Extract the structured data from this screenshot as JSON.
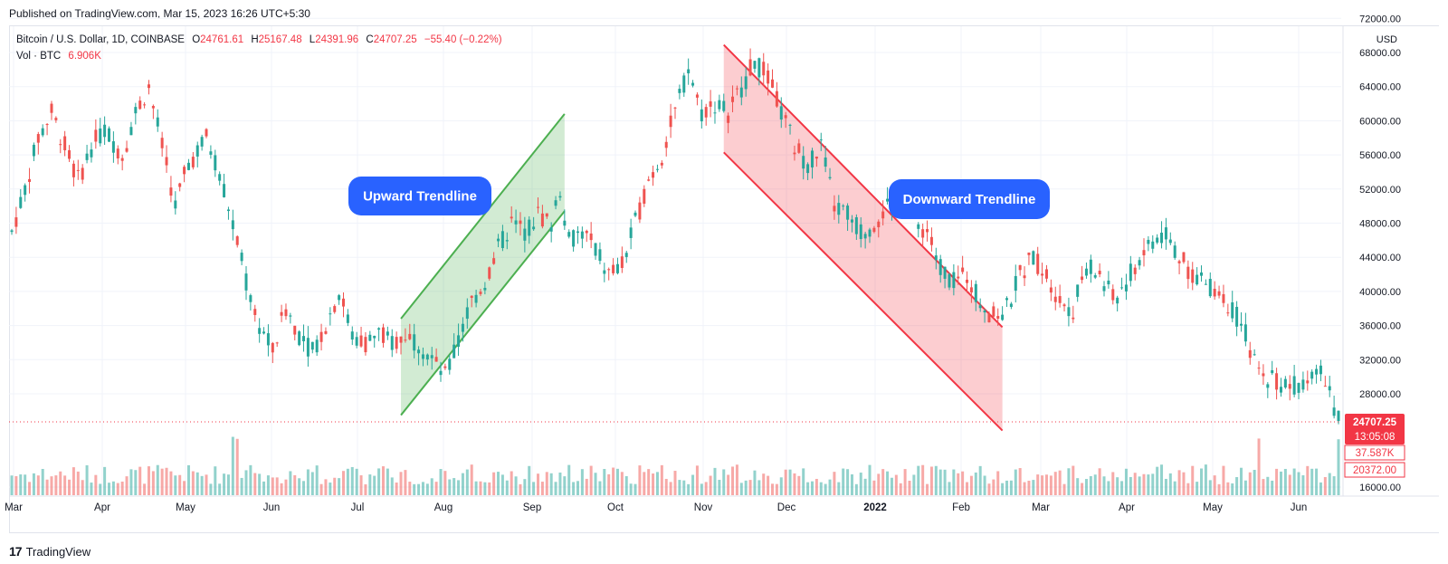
{
  "header": {
    "published": "Published on TradingView.com, Mar 15, 2023 16:26 UTC+5:30"
  },
  "legend": {
    "symbol": "Bitcoin / U.S. Dollar, 1D, COINBASE",
    "o_label": "O",
    "o_value": "24761.61",
    "h_label": "H",
    "h_value": "25167.48",
    "l_label": "L",
    "l_value": "24391.96",
    "c_label": "C",
    "c_value": "24707.25",
    "change": "−55.40 (−0.22%)",
    "vol_label": "Vol · BTC",
    "vol_value": "6.906K"
  },
  "footer": {
    "brand": "TradingView",
    "logo_glyph": "17"
  },
  "colors": {
    "up": "#26a69a",
    "down": "#ef5350",
    "up_channel_fill": "rgba(76,175,80,0.25)",
    "up_channel_stroke": "#4caf50",
    "down_channel_fill": "rgba(242,54,69,0.25)",
    "down_channel_stroke": "#f23645",
    "callout": "#2962ff",
    "price_tag": "#f23645"
  },
  "chart_data": {
    "type": "candlestick",
    "title": "Bitcoin / U.S. Dollar, 1D, COINBASE",
    "currency": "USD",
    "y_ticks": [
      "72000.00",
      "68000.00",
      "64000.00",
      "60000.00",
      "56000.00",
      "52000.00",
      "48000.00",
      "44000.00",
      "40000.00",
      "36000.00",
      "32000.00",
      "28000.00",
      "16000.00"
    ],
    "x_ticks": [
      "Mar",
      "Apr",
      "May",
      "Jun",
      "Jul",
      "Aug",
      "Sep",
      "Oct",
      "Nov",
      "Dec",
      "2022",
      "Feb",
      "Mar",
      "Apr",
      "May",
      "Jun"
    ],
    "ylim": [
      16000,
      72000
    ],
    "last_price": "24707.25",
    "countdown": "13:05:08",
    "volume_tag": "37.587K",
    "volume_ma_tag": "20372.00",
    "trend_points": [
      [
        0,
        47000
      ],
      [
        3,
        52000
      ],
      [
        6,
        58000
      ],
      [
        9,
        61000
      ],
      [
        12,
        57000
      ],
      [
        15,
        53000
      ],
      [
        18,
        57000
      ],
      [
        21,
        59000
      ],
      [
        25,
        56000
      ],
      [
        28,
        61000
      ],
      [
        31,
        64000
      ],
      [
        34,
        57000
      ],
      [
        37,
        50000
      ],
      [
        40,
        55000
      ],
      [
        44,
        58000
      ],
      [
        47,
        54000
      ],
      [
        50,
        48000
      ],
      [
        53,
        41000
      ],
      [
        56,
        36000
      ],
      [
        59,
        33000
      ],
      [
        62,
        38000
      ],
      [
        65,
        35000
      ],
      [
        68,
        33000
      ],
      [
        71,
        36000
      ],
      [
        74,
        40000
      ],
      [
        77,
        35000
      ],
      [
        80,
        34000
      ],
      [
        83,
        35000
      ],
      [
        86,
        34000
      ],
      [
        89,
        35000
      ],
      [
        92,
        34000
      ],
      [
        95,
        32000
      ],
      [
        98,
        30000
      ],
      [
        101,
        34000
      ],
      [
        104,
        39000
      ],
      [
        107,
        41000
      ],
      [
        110,
        45000
      ],
      [
        113,
        48000
      ],
      [
        116,
        47000
      ],
      [
        119,
        49000
      ],
      [
        122,
        48000
      ],
      [
        124,
        52000
      ],
      [
        126,
        46000
      ],
      [
        129,
        47000
      ],
      [
        132,
        45000
      ],
      [
        135,
        42000
      ],
      [
        138,
        43000
      ],
      [
        141,
        48000
      ],
      [
        144,
        53000
      ],
      [
        147,
        56000
      ],
      [
        150,
        61000
      ],
      [
        153,
        66000
      ],
      [
        156,
        61000
      ],
      [
        159,
        62000
      ],
      [
        162,
        61000
      ],
      [
        165,
        64000
      ],
      [
        168,
        67000
      ],
      [
        171,
        65000
      ],
      [
        174,
        61000
      ],
      [
        177,
        57000
      ],
      [
        180,
        55000
      ],
      [
        183,
        57000
      ],
      [
        186,
        50000
      ],
      [
        189,
        49000
      ],
      [
        192,
        47000
      ],
      [
        195,
        48000
      ],
      [
        198,
        50000
      ],
      [
        201,
        51000
      ],
      [
        204,
        48000
      ],
      [
        207,
        47000
      ],
      [
        210,
        43000
      ],
      [
        213,
        41000
      ],
      [
        216,
        42000
      ],
      [
        219,
        39000
      ],
      [
        222,
        37000
      ],
      [
        225,
        38000
      ],
      [
        228,
        42000
      ],
      [
        231,
        44000
      ],
      [
        234,
        42000
      ],
      [
        237,
        39000
      ],
      [
        240,
        38000
      ],
      [
        243,
        43000
      ],
      [
        246,
        42000
      ],
      [
        249,
        39000
      ],
      [
        252,
        41000
      ],
      [
        255,
        44000
      ],
      [
        258,
        46000
      ],
      [
        261,
        47000
      ],
      [
        264,
        44000
      ],
      [
        267,
        42000
      ],
      [
        270,
        41000
      ],
      [
        273,
        40000
      ],
      [
        276,
        38000
      ],
      [
        279,
        35000
      ],
      [
        282,
        30000
      ],
      [
        285,
        30000
      ],
      [
        288,
        29000
      ],
      [
        291,
        29000
      ],
      [
        294,
        31000
      ],
      [
        297,
        30000
      ],
      [
        300,
        25000
      ]
    ],
    "annotations": [
      {
        "label": "Upward Trendline",
        "kind": "ascending-channel"
      },
      {
        "label": "Downward Trendline",
        "kind": "descending-channel"
      }
    ]
  }
}
